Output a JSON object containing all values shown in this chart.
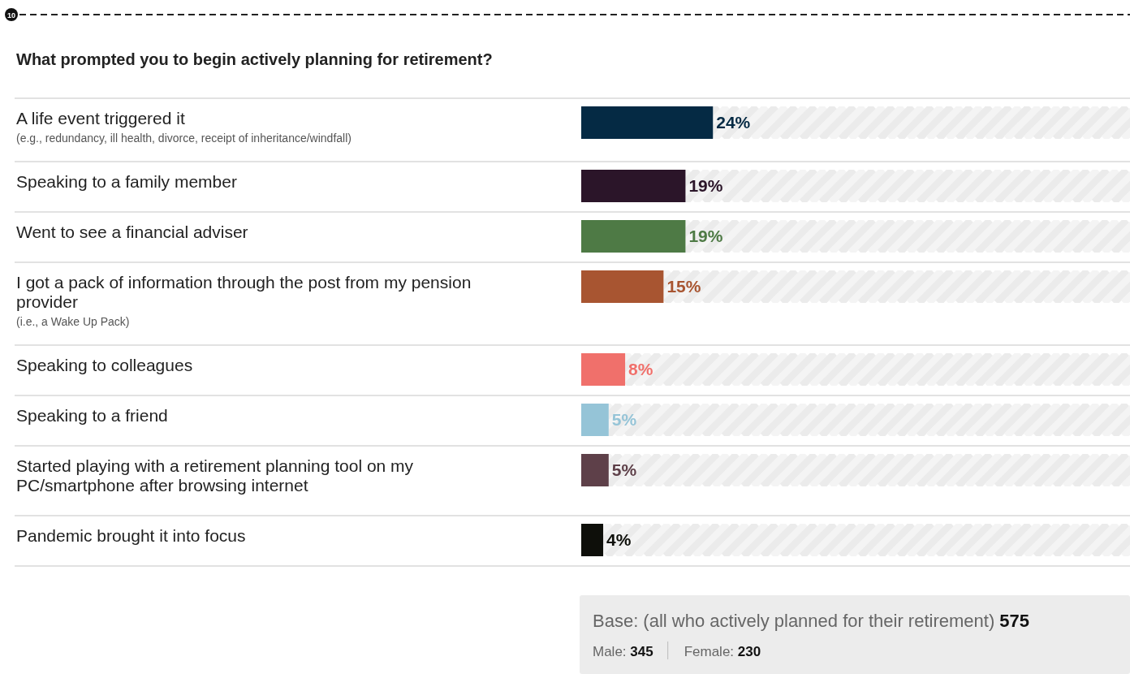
{
  "chart_data": {
    "type": "bar",
    "orientation": "horizontal",
    "title": "What prompted you to begin actively planning for retirement?",
    "categories": [
      "A life event triggered it\n(e.g., redundancy, ill health, divorce, receipt of inheritance/windfall)",
      "Speaking to a family member",
      "Went to see a financial adviser",
      "I got a pack of information through the post from my pension provider\n(i.e., a Wake Up Pack)",
      "Speaking to colleagues",
      "Speaking to a friend",
      "Started playing with a retirement planning tool on my PC/smartphone after browsing internet",
      "Pandemic brought it into focus"
    ],
    "values": [
      24,
      19,
      19,
      15,
      8,
      5,
      5,
      4
    ],
    "colors": [
      "#052a44",
      "#2b1529",
      "#4e7a45",
      "#a85531",
      "#f0706b",
      "#95c4d7",
      "#5e4049",
      "#0e0f0a"
    ],
    "value_labels": [
      "24%",
      "19%",
      "19%",
      "15%",
      "8%",
      "5%",
      "5%",
      "4%"
    ],
    "xlim": [
      0,
      100
    ],
    "annotations": [
      "10",
      "Base: (all who actively planned for their retirement) 575",
      "Male: 345",
      "Female: 230"
    ]
  }
}
